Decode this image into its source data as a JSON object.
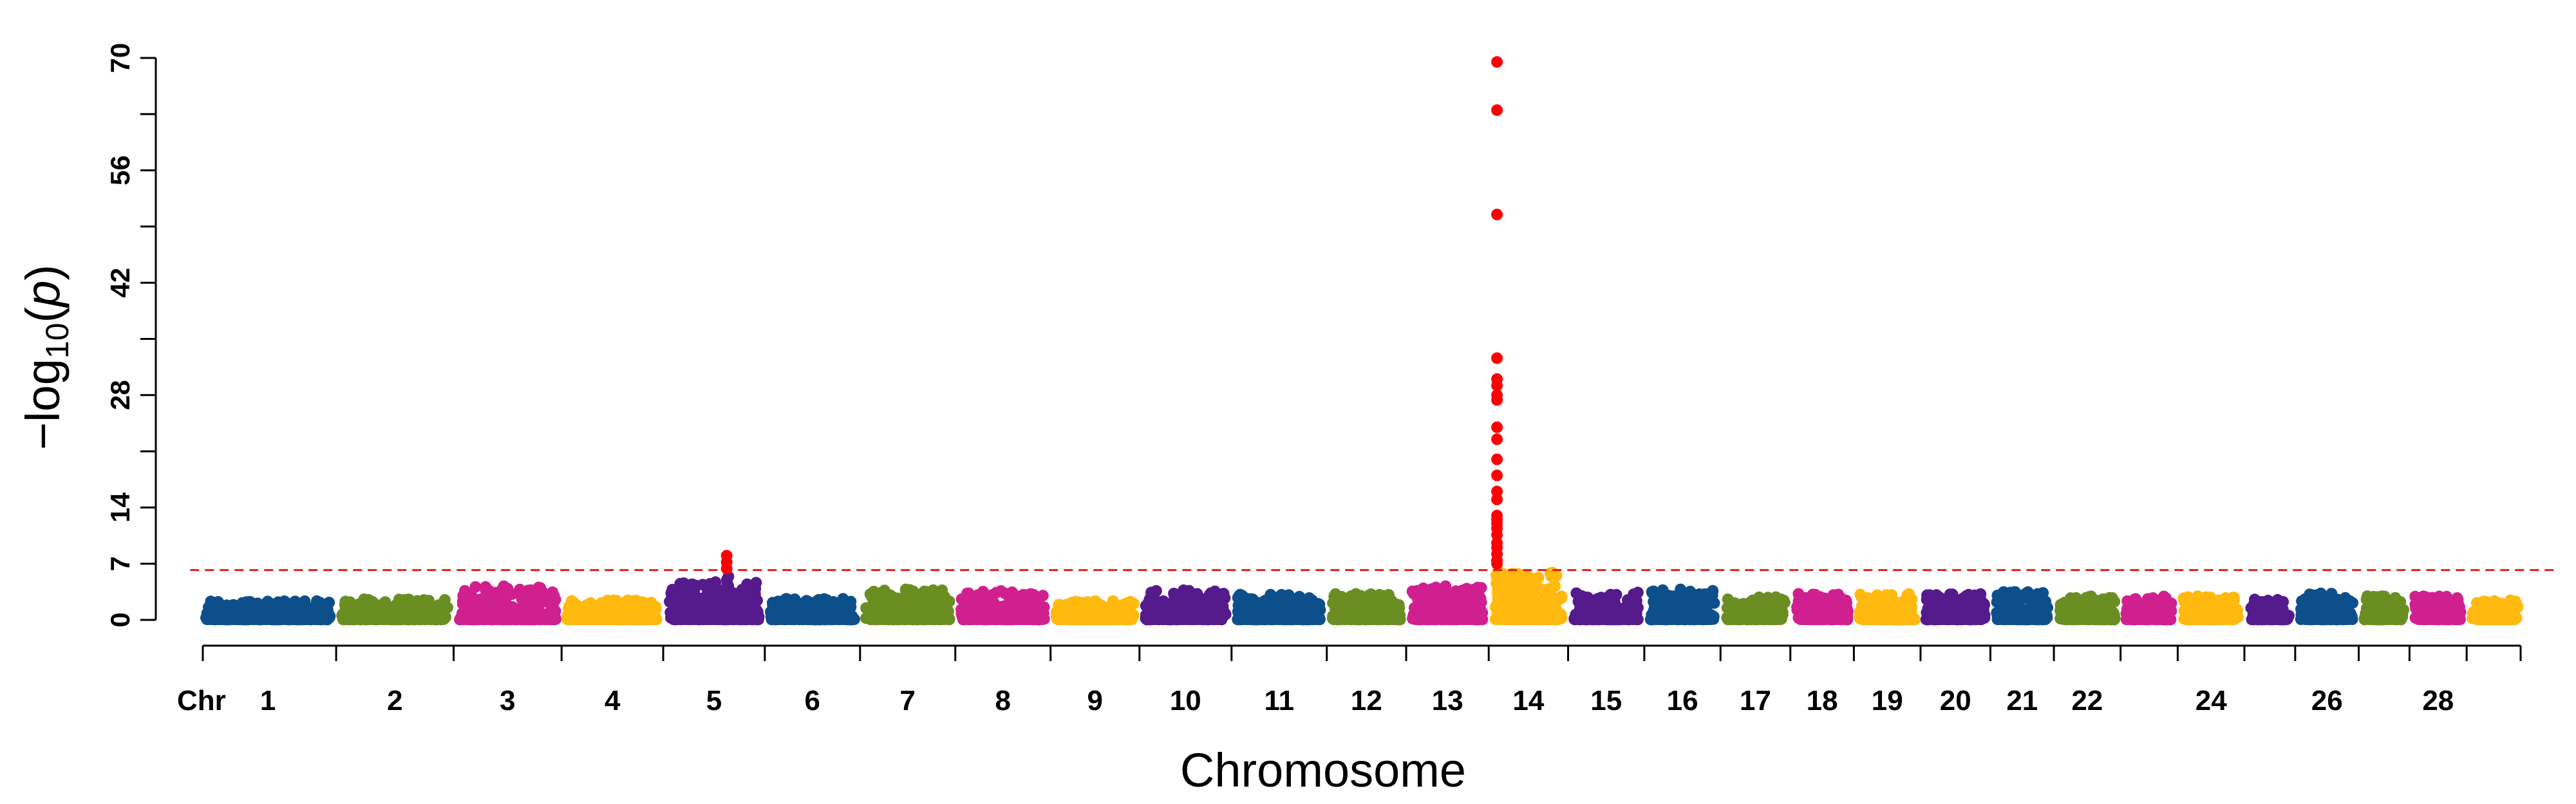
{
  "chart_data": {
    "type": "scatter",
    "subtype": "manhattan",
    "title": "",
    "xlabel": "Chromosome",
    "ylabel": "−log10(p)",
    "ylabel_parts": {
      "prefix": "−log",
      "subscript": "10",
      "paren_open": "(",
      "italic": "p",
      "paren_close": ")"
    },
    "x_axis_prefix_label": "Chr",
    "ylim": [
      0,
      70
    ],
    "y_ticks_labeled": [
      0,
      7,
      14,
      28,
      42,
      56,
      70
    ],
    "y_ticks_minor": [
      21,
      35,
      49,
      63
    ],
    "threshold": 6.2,
    "threshold_color": "#e41a1c",
    "significant_color": "#ff0000",
    "palette": [
      "#0d4f8b",
      "#6b8e23",
      "#d02090",
      "#ffb90f",
      "#551a8b"
    ],
    "chromosomes": [
      {
        "chr": 1,
        "label": "1",
        "start": 0,
        "end": 205,
        "peak": 2.4,
        "tops": []
      },
      {
        "chr": 2,
        "label": "2",
        "start": 215,
        "end": 390,
        "peak": 2.8,
        "tops": []
      },
      {
        "chr": 3,
        "label": "3",
        "start": 400,
        "end": 560,
        "peak": 4.2,
        "tops": [
          4.2,
          3.9
        ]
      },
      {
        "chr": 4,
        "label": "4",
        "start": 570,
        "end": 720,
        "peak": 2.5,
        "tops": []
      },
      {
        "chr": 5,
        "label": "5",
        "start": 730,
        "end": 880,
        "peak": 4.8,
        "tops": [
          8.0,
          7.2,
          6.4
        ]
      },
      {
        "chr": 6,
        "label": "6",
        "start": 890,
        "end": 1030,
        "peak": 2.7,
        "tops": []
      },
      {
        "chr": 7,
        "label": "7",
        "start": 1040,
        "end": 1180,
        "peak": 3.8,
        "tops": [
          3.8
        ]
      },
      {
        "chr": 8,
        "label": "8",
        "start": 1190,
        "end": 1330,
        "peak": 3.6,
        "tops": [
          3.6
        ]
      },
      {
        "chr": 9,
        "label": "9",
        "start": 1340,
        "end": 1470,
        "peak": 2.4,
        "tops": []
      },
      {
        "chr": 10,
        "label": "10",
        "start": 1480,
        "end": 1615,
        "peak": 3.7,
        "tops": [
          3.7
        ]
      },
      {
        "chr": 11,
        "label": "11",
        "start": 1625,
        "end": 1765,
        "peak": 3.2,
        "tops": []
      },
      {
        "chr": 12,
        "label": "12",
        "start": 1775,
        "end": 1890,
        "peak": 3.3,
        "tops": []
      },
      {
        "chr": 13,
        "label": "13",
        "start": 1900,
        "end": 2020,
        "peak": 4.2,
        "tops": [
          4.2
        ]
      },
      {
        "chr": 14,
        "label": "14",
        "start": 2030,
        "end": 2145,
        "peak": 6.0,
        "tops": [
          69.5,
          63.5,
          50.5,
          32.6,
          30.0,
          29.2,
          28.0,
          27.4,
          24.0,
          22.5,
          20.0,
          18.0,
          16.0,
          15.0,
          13.0,
          12.5,
          12.0,
          11.4,
          10.6,
          9.6,
          9.0,
          8.2,
          7.4,
          7.0
        ]
      },
      {
        "chr": 15,
        "label": "15",
        "start": 2155,
        "end": 2265,
        "peak": 3.6,
        "tops": []
      },
      {
        "chr": 16,
        "label": "16",
        "start": 2275,
        "end": 2385,
        "peak": 3.8,
        "tops": [
          3.8
        ]
      },
      {
        "chr": 17,
        "label": "17",
        "start": 2395,
        "end": 2495,
        "peak": 2.9,
        "tops": []
      },
      {
        "chr": 18,
        "label": "18",
        "start": 2505,
        "end": 2595,
        "peak": 3.3,
        "tops": []
      },
      {
        "chr": 19,
        "label": "19",
        "start": 2605,
        "end": 2700,
        "peak": 3.3,
        "tops": []
      },
      {
        "chr": 20,
        "label": "20",
        "start": 2710,
        "end": 2810,
        "peak": 3.3,
        "tops": []
      },
      {
        "chr": 21,
        "label": "21",
        "start": 2820,
        "end": 2910,
        "peak": 3.6,
        "tops": []
      },
      {
        "chr": 22,
        "label": "22",
        "start": 2920,
        "end": 3015,
        "peak": 3.0,
        "tops": []
      },
      {
        "chr": 23,
        "label": "",
        "start": 3025,
        "end": 3105,
        "peak": 3.0,
        "tops": []
      },
      {
        "chr": 24,
        "label": "24",
        "start": 3115,
        "end": 3210,
        "peak": 3.0,
        "tops": []
      },
      {
        "chr": 25,
        "label": "",
        "start": 3220,
        "end": 3290,
        "peak": 2.6,
        "tops": []
      },
      {
        "chr": 26,
        "label": "26",
        "start": 3300,
        "end": 3390,
        "peak": 3.4,
        "tops": []
      },
      {
        "chr": 27,
        "label": "",
        "start": 3400,
        "end": 3470,
        "peak": 3.2,
        "tops": []
      },
      {
        "chr": 28,
        "label": "28",
        "start": 3480,
        "end": 3560,
        "peak": 3.0,
        "tops": []
      },
      {
        "chr": 29,
        "label": "",
        "start": 3570,
        "end": 3650,
        "peak": 2.5,
        "tops": []
      }
    ],
    "grid": false,
    "legend": "none"
  }
}
